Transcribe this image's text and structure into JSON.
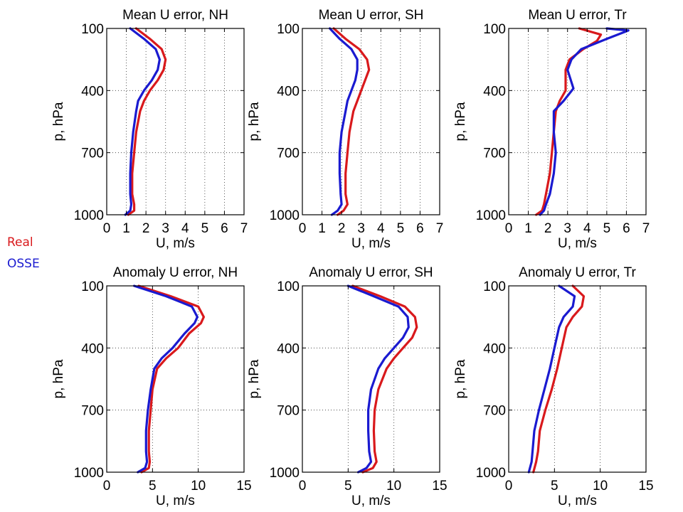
{
  "legend": {
    "real_label": "Real",
    "osse_label": "OSSE",
    "real_color": "#d9191c",
    "osse_color": "#1a1ad0"
  },
  "chart_data": [
    {
      "type": "line",
      "title": "Mean U error, NH",
      "xlabel": "U, m/s",
      "ylabel": "p, hPa",
      "xlim": [
        0,
        7
      ],
      "ylim": [
        100,
        1000
      ],
      "y_reversed": true,
      "xticks": [
        0,
        1,
        2,
        3,
        4,
        5,
        6,
        7
      ],
      "yticks": [
        100,
        400,
        700,
        1000
      ],
      "grid": true,
      "series": [
        {
          "name": "Real",
          "color": "#d9191c",
          "x": [
            1.5,
            2.2,
            2.8,
            3.0,
            2.9,
            2.6,
            2.2,
            1.9,
            1.7,
            1.5,
            1.4,
            1.3,
            1.3,
            1.4,
            1.4,
            1.1
          ],
          "y": [
            100,
            150,
            200,
            250,
            300,
            350,
            400,
            450,
            500,
            600,
            700,
            800,
            900,
            950,
            980,
            1000
          ]
        },
        {
          "name": "OSSE",
          "color": "#1a1ad0",
          "x": [
            1.2,
            1.9,
            2.5,
            2.7,
            2.6,
            2.3,
            1.9,
            1.6,
            1.5,
            1.35,
            1.25,
            1.2,
            1.2,
            1.25,
            1.2,
            0.95
          ],
          "y": [
            100,
            150,
            200,
            250,
            300,
            350,
            400,
            450,
            500,
            600,
            700,
            800,
            900,
            950,
            980,
            1000
          ]
        }
      ]
    },
    {
      "type": "line",
      "title": "Mean U error, SH",
      "xlabel": "U, m/s",
      "ylabel": "p, hPa",
      "xlim": [
        0,
        7
      ],
      "ylim": [
        100,
        1000
      ],
      "y_reversed": true,
      "xticks": [
        0,
        1,
        2,
        3,
        4,
        5,
        6,
        7
      ],
      "yticks": [
        100,
        400,
        700,
        1000
      ],
      "grid": true,
      "series": [
        {
          "name": "Real",
          "color": "#d9191c",
          "x": [
            1.6,
            2.2,
            2.9,
            3.3,
            3.4,
            3.2,
            3.0,
            2.8,
            2.6,
            2.4,
            2.3,
            2.2,
            2.2,
            2.3,
            2.1,
            1.8
          ],
          "y": [
            100,
            150,
            200,
            250,
            300,
            350,
            400,
            450,
            500,
            600,
            700,
            800,
            900,
            950,
            980,
            1000
          ]
        },
        {
          "name": "OSSE",
          "color": "#1a1ad0",
          "x": [
            1.4,
            1.9,
            2.5,
            2.8,
            2.8,
            2.7,
            2.5,
            2.3,
            2.2,
            2.0,
            1.9,
            1.9,
            1.95,
            2.0,
            1.8,
            1.5
          ],
          "y": [
            100,
            150,
            200,
            250,
            300,
            350,
            400,
            450,
            500,
            600,
            700,
            800,
            900,
            950,
            980,
            1000
          ]
        }
      ]
    },
    {
      "type": "line",
      "title": "Mean U error, Tr",
      "xlabel": "U, m/s",
      "ylabel": "p, hPa",
      "xlim": [
        0,
        7
      ],
      "ylim": [
        100,
        1000
      ],
      "y_reversed": true,
      "xticks": [
        0,
        1,
        2,
        3,
        4,
        5,
        6,
        7
      ],
      "yticks": [
        100,
        400,
        700,
        1000
      ],
      "grid": true,
      "series": [
        {
          "name": "Real",
          "color": "#d9191c",
          "x": [
            3.6,
            4.7,
            4.5,
            3.8,
            3.1,
            2.9,
            2.9,
            2.6,
            2.4,
            2.3,
            2.2,
            2.1,
            1.9,
            1.8,
            1.7,
            1.4
          ],
          "y": [
            100,
            130,
            160,
            200,
            250,
            300,
            400,
            450,
            500,
            600,
            700,
            800,
            900,
            950,
            980,
            1000
          ]
        },
        {
          "name": "OSSE",
          "color": "#1a1ad0",
          "x": [
            5.0,
            6.1,
            5.0,
            3.7,
            3.2,
            3.0,
            3.3,
            2.8,
            2.3,
            2.3,
            2.4,
            2.3,
            2.1,
            1.9,
            1.8,
            1.6
          ],
          "y": [
            100,
            110,
            150,
            200,
            250,
            300,
            390,
            450,
            500,
            600,
            700,
            800,
            900,
            950,
            980,
            1000
          ]
        }
      ]
    },
    {
      "type": "line",
      "title": "Anomaly U error, NH",
      "xlabel": "U, m/s",
      "ylabel": "p, hPa",
      "xlim": [
        0,
        15
      ],
      "ylim": [
        100,
        1000
      ],
      "y_reversed": true,
      "xticks": [
        0,
        5,
        10,
        15
      ],
      "yticks": [
        100,
        400,
        700,
        1000
      ],
      "grid": true,
      "series": [
        {
          "name": "Real",
          "color": "#d9191c",
          "x": [
            3.5,
            7.0,
            10.0,
            10.6,
            10.3,
            9.0,
            7.8,
            6.5,
            5.5,
            5.0,
            4.8,
            4.6,
            4.6,
            4.7,
            4.6,
            3.8
          ],
          "y": [
            100,
            150,
            200,
            250,
            280,
            330,
            400,
            450,
            500,
            600,
            700,
            800,
            900,
            950,
            980,
            1000
          ]
        },
        {
          "name": "OSSE",
          "color": "#1a1ad0",
          "x": [
            3.0,
            6.5,
            9.3,
            9.9,
            9.6,
            8.5,
            7.2,
            6.0,
            5.2,
            4.8,
            4.5,
            4.3,
            4.3,
            4.4,
            4.2,
            3.4
          ],
          "y": [
            100,
            150,
            200,
            250,
            280,
            330,
            400,
            450,
            500,
            600,
            700,
            800,
            900,
            950,
            980,
            1000
          ]
        }
      ]
    },
    {
      "type": "line",
      "title": "Anomaly U error, SH",
      "xlabel": "U, m/s",
      "ylabel": "p, hPa",
      "xlim": [
        0,
        15
      ],
      "ylim": [
        100,
        1000
      ],
      "y_reversed": true,
      "xticks": [
        0,
        5,
        10,
        15
      ],
      "yticks": [
        100,
        400,
        700,
        1000
      ],
      "grid": true,
      "series": [
        {
          "name": "Real",
          "color": "#d9191c",
          "x": [
            5.5,
            8.5,
            11.2,
            12.3,
            12.5,
            12.0,
            11.0,
            10.0,
            9.2,
            8.3,
            7.9,
            7.8,
            7.9,
            8.1,
            7.7,
            6.6
          ],
          "y": [
            100,
            150,
            200,
            250,
            300,
            350,
            400,
            450,
            500,
            600,
            700,
            800,
            900,
            950,
            980,
            1000
          ]
        },
        {
          "name": "OSSE",
          "color": "#1a1ad0",
          "x": [
            5.0,
            7.8,
            10.5,
            11.5,
            11.6,
            11.0,
            10.0,
            9.0,
            8.3,
            7.5,
            7.2,
            7.2,
            7.3,
            7.5,
            7.0,
            6.1
          ],
          "y": [
            100,
            150,
            200,
            250,
            300,
            350,
            400,
            450,
            500,
            600,
            700,
            800,
            900,
            950,
            980,
            1000
          ]
        }
      ]
    },
    {
      "type": "line",
      "title": "Anomaly U error, Tr",
      "xlabel": "U, m/s",
      "ylabel": "p, hPa",
      "xlim": [
        0,
        15
      ],
      "ylim": [
        100,
        1000
      ],
      "y_reversed": true,
      "xticks": [
        0,
        5,
        10,
        15
      ],
      "yticks": [
        100,
        400,
        700,
        1000
      ],
      "grid": true,
      "series": [
        {
          "name": "Real",
          "color": "#d9191c",
          "x": [
            7.0,
            8.2,
            8.0,
            7.0,
            6.3,
            5.8,
            5.3,
            4.7,
            4.0,
            3.4,
            3.2,
            3.0,
            2.7
          ],
          "y": [
            100,
            150,
            200,
            250,
            300,
            400,
            500,
            600,
            700,
            800,
            900,
            950,
            1000
          ]
        },
        {
          "name": "OSSE",
          "color": "#1a1ad0",
          "x": [
            5.5,
            7.2,
            7.0,
            6.0,
            5.5,
            5.0,
            4.5,
            3.9,
            3.3,
            2.8,
            2.6,
            2.5,
            2.2
          ],
          "y": [
            100,
            150,
            200,
            250,
            300,
            400,
            500,
            600,
            700,
            800,
            900,
            950,
            1000
          ]
        }
      ]
    }
  ]
}
